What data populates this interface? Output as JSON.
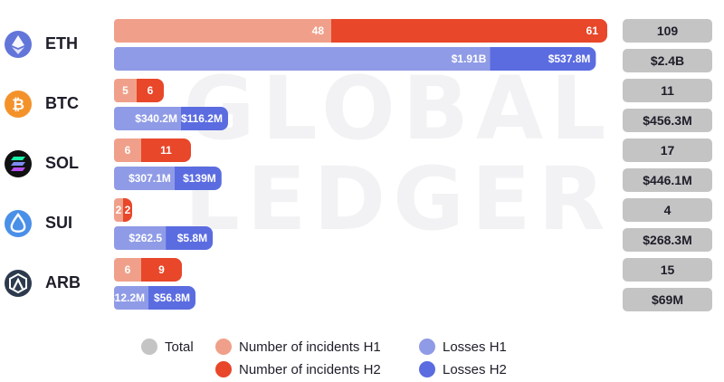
{
  "watermark": {
    "line1": "GLOBAL",
    "line2": "LEDGER"
  },
  "colors": {
    "incidents_h1": "#f0a08a",
    "incidents_h2": "#e8472a",
    "losses_h1": "#8f9be6",
    "losses_h2": "#5b6ce0",
    "total": "#c4c4c4"
  },
  "legend": {
    "total": "Total",
    "incidents_h1": "Number of incidents H1",
    "incidents_h2": "Number of incidents H2",
    "losses_h1": "Losses H1",
    "losses_h2": "Losses H2"
  },
  "chart_data": {
    "type": "bar",
    "orientation": "horizontal",
    "stacked": true,
    "categories": [
      "ETH",
      "BTC",
      "SOL",
      "SUI",
      "ARB"
    ],
    "series": [
      {
        "name": "Number of incidents H1",
        "values": [
          48,
          5,
          6,
          2,
          6
        ],
        "labels": [
          "48",
          "5",
          "6",
          "2",
          "6"
        ]
      },
      {
        "name": "Number of incidents H2",
        "values": [
          61,
          6,
          11,
          2,
          9
        ],
        "labels": [
          "61",
          "6",
          "11",
          "2",
          "9"
        ]
      },
      {
        "name": "Losses H1",
        "values": [
          1910,
          340.2,
          307.1,
          262.5,
          12.2
        ],
        "unit": "$M",
        "labels": [
          "$1.91B",
          "$340.2M",
          "$307.1M",
          "$262.5",
          "$12.2M"
        ]
      },
      {
        "name": "Losses H2",
        "values": [
          537.8,
          116.2,
          139,
          5.8,
          56.8
        ],
        "unit": "$M",
        "labels": [
          "$537.8M",
          "$116.2M",
          "$139M",
          "$5.8M",
          "$56.8M"
        ]
      }
    ],
    "totals": {
      "incidents": [
        "109",
        "11",
        "17",
        "4",
        "15"
      ],
      "losses": [
        "$2.4B",
        "$456.3M",
        "$446.1M",
        "$268.3M",
        "$69M"
      ]
    },
    "legend_position": "bottom",
    "grid": false
  }
}
